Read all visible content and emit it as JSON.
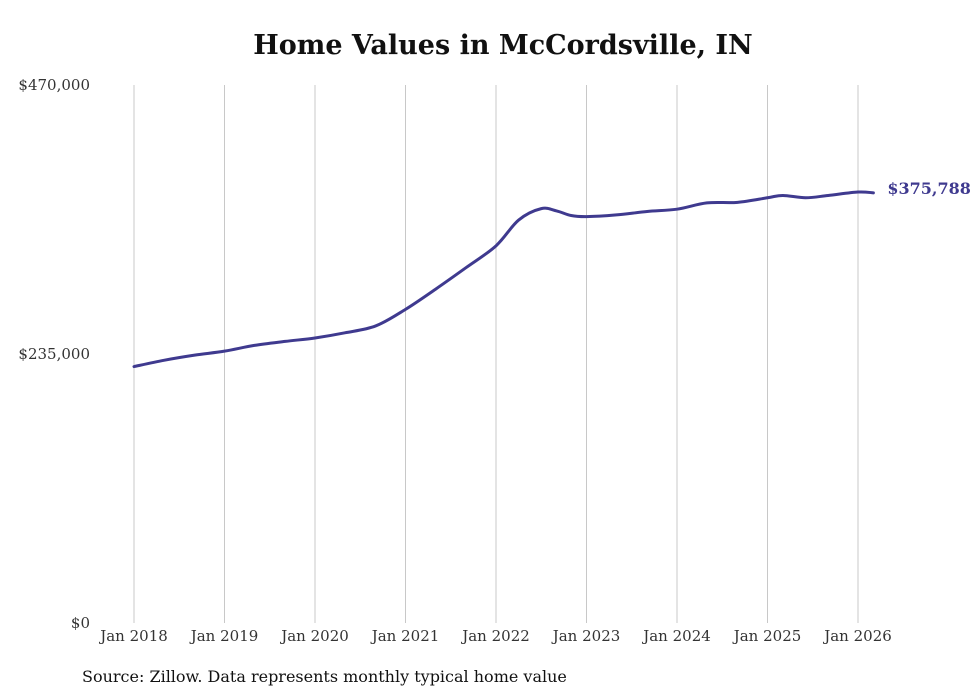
{
  "chart_data": {
    "type": "line",
    "title": "Home Values in McCordsville, IN",
    "source": "Source: Zillow. Data represents monthly typical home value",
    "ylim": [
      0,
      470000
    ],
    "y_ticks": [
      {
        "value": 0,
        "label": "$0"
      },
      {
        "value": 235000,
        "label": "$235,000"
      },
      {
        "value": 470000,
        "label": "$470,000"
      }
    ],
    "x_range": [
      2018.0,
      2026.2
    ],
    "x_ticks": [
      {
        "value": 2018,
        "label": "Jan 2018"
      },
      {
        "value": 2019,
        "label": "Jan 2019"
      },
      {
        "value": 2020,
        "label": "Jan 2020"
      },
      {
        "value": 2021,
        "label": "Jan 2021"
      },
      {
        "value": 2022,
        "label": "Jan 2022"
      },
      {
        "value": 2023,
        "label": "Jan 2023"
      },
      {
        "value": 2024,
        "label": "Jan 2024"
      },
      {
        "value": 2025,
        "label": "Jan 2025"
      },
      {
        "value": 2026,
        "label": "Jan 2026"
      }
    ],
    "grid": "vertical",
    "series": [
      {
        "name": "Typical home value",
        "color": "#3f3a8f",
        "end_label": "$375,788",
        "points": [
          [
            2018.0,
            224000
          ],
          [
            2018.33,
            229500
          ],
          [
            2018.67,
            234000
          ],
          [
            2019.0,
            237500
          ],
          [
            2019.33,
            242500
          ],
          [
            2019.67,
            246000
          ],
          [
            2020.0,
            249000
          ],
          [
            2020.33,
            253500
          ],
          [
            2020.67,
            259500
          ],
          [
            2021.0,
            274000
          ],
          [
            2021.33,
            291500
          ],
          [
            2021.67,
            310500
          ],
          [
            2022.0,
            329500
          ],
          [
            2022.25,
            352000
          ],
          [
            2022.5,
            362000
          ],
          [
            2022.67,
            360000
          ],
          [
            2022.83,
            356000
          ],
          [
            2023.0,
            355000
          ],
          [
            2023.33,
            356500
          ],
          [
            2023.67,
            359500
          ],
          [
            2024.0,
            361500
          ],
          [
            2024.33,
            367000
          ],
          [
            2024.67,
            367500
          ],
          [
            2025.0,
            371500
          ],
          [
            2025.17,
            373500
          ],
          [
            2025.42,
            371500
          ],
          [
            2025.67,
            373500
          ],
          [
            2026.0,
            376500
          ],
          [
            2026.17,
            375788
          ]
        ]
      }
    ]
  }
}
